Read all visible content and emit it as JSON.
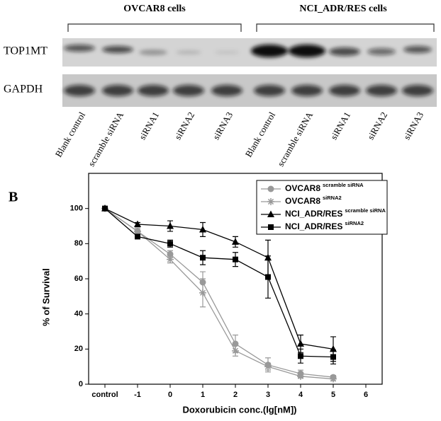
{
  "blot": {
    "groups": [
      "OVCAR8 cells",
      "NCI_ADR/RES cells"
    ],
    "rows": [
      "TOP1MT",
      "GAPDH"
    ],
    "lanes": [
      "Blank control",
      "scramble siRNA",
      "siRNA1",
      "siRNA2",
      "siRNA3",
      "Blank control",
      "scramble siRNA",
      "siRNA1",
      "siRNA2",
      "siRNA3"
    ]
  },
  "panel_label": "B",
  "chart_data": {
    "type": "line",
    "x_label": "Doxorubicin conc.(lg[nM])",
    "y_label": "% of Survival",
    "x": [
      -2,
      -1,
      0,
      1,
      2,
      3,
      4,
      5
    ],
    "xlim": [
      -2.5,
      6.5
    ],
    "xticks": [
      {
        "value": -2,
        "label": "control"
      },
      -1,
      0,
      1,
      2,
      3,
      4,
      5,
      6
    ],
    "ylim": [
      0,
      120
    ],
    "yticks": [
      0,
      20,
      40,
      60,
      80,
      100
    ],
    "series": [
      {
        "name": "OVCAR8",
        "superscript": "scramble siRNA",
        "color": "#999999",
        "marker": "circle",
        "values": [
          100,
          87,
          74,
          58,
          23,
          11,
          6,
          4
        ],
        "errors": [
          0,
          2,
          2,
          6,
          5,
          4,
          2,
          1
        ]
      },
      {
        "name": "OVCAR8",
        "superscript": "siRNA2",
        "color": "#999999",
        "marker": "star",
        "values": [
          100,
          87,
          71,
          52,
          19,
          10,
          4.5,
          3
        ],
        "errors": [
          0,
          2,
          2,
          8,
          3,
          2,
          1,
          1
        ]
      },
      {
        "name": "NCI_ADR/RES",
        "superscript": "scramble siRNA",
        "color": "#000000",
        "marker": "triangle",
        "values": [
          100,
          91,
          90,
          88,
          81,
          72,
          23,
          20
        ],
        "errors": [
          0,
          1,
          3,
          4,
          3,
          10,
          5,
          7
        ]
      },
      {
        "name": "NCI_ADR/RES",
        "superscript": "siRNA2",
        "color": "#000000",
        "marker": "square",
        "values": [
          100,
          84,
          80,
          72,
          71,
          61,
          16,
          15.5
        ],
        "errors": [
          0,
          1,
          2,
          4,
          4,
          12,
          4,
          4
        ]
      }
    ]
  }
}
